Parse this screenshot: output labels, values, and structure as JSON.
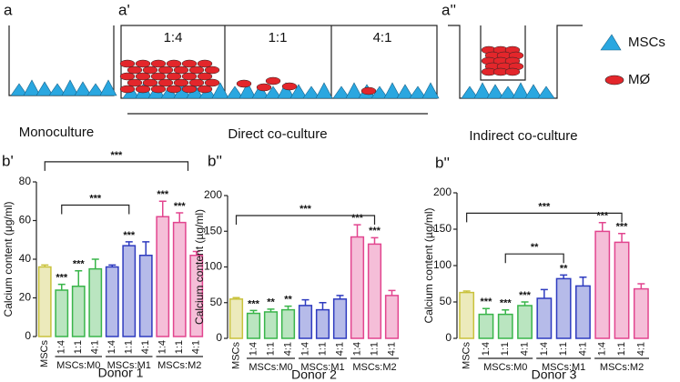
{
  "schematic": {
    "panel_a": "a",
    "panel_a1": "a'",
    "panel_a2": "a''",
    "ratios": [
      "1:4",
      "1:1",
      "4:1"
    ],
    "legend": [
      "MSCs",
      "MØ"
    ],
    "captions": [
      "Monoculture",
      "Direct co-culture",
      "Indirect co-culture"
    ]
  },
  "chart_data": [
    {
      "type": "bar",
      "panel": "b'",
      "title": "Donor 1",
      "ylabel": "Calcium content (μg/ml)",
      "categories": [
        "MSCs",
        "1:4",
        "1:1",
        "4:1",
        "1:4",
        "1:1",
        "4:1",
        "1:4",
        "1:1",
        "4:1"
      ],
      "values": [
        36,
        24,
        26,
        35,
        36,
        47,
        42,
        62,
        59,
        42
      ],
      "errors": [
        1,
        3,
        8,
        5,
        1,
        2,
        7,
        8,
        5,
        2
      ],
      "significance": [
        null,
        "***",
        "***",
        null,
        null,
        "***",
        null,
        "***",
        "***",
        null
      ],
      "groups": [
        "MSCs:M0",
        "MSCs:M1",
        "MSCs:M2"
      ],
      "brackets": [
        "***",
        "***"
      ],
      "colors": [
        "#c9c23c",
        "#39b54a",
        "#39b54a",
        "#39b54a",
        "#2e3bbf",
        "#2e3bbf",
        "#2e3bbf",
        "#e2458f",
        "#e2458f",
        "#e2458f"
      ],
      "ylim": [
        0,
        80
      ],
      "yticks": [
        0,
        20,
        40,
        60,
        80
      ]
    },
    {
      "type": "bar",
      "panel": "b''",
      "title": "Donor 2",
      "ylabel": "Calcium content (µg/ml)",
      "categories": [
        "MSCs",
        "1:4",
        "1:1",
        "4:1",
        "1:4",
        "1:1",
        "4:1",
        "1:4",
        "1:1",
        "4:1"
      ],
      "values": [
        55,
        35,
        37,
        40,
        46,
        40,
        55,
        142,
        132,
        60
      ],
      "errors": [
        2,
        4,
        4,
        5,
        8,
        10,
        5,
        17,
        9,
        7
      ],
      "significance": [
        null,
        "***",
        "**",
        "**",
        null,
        null,
        null,
        "***",
        "***",
        null
      ],
      "groups": [
        "MSCs:M0",
        "MSCs:M1",
        "MSCs:M2"
      ],
      "brackets": [
        "***"
      ],
      "colors": [
        "#c9c23c",
        "#39b54a",
        "#39b54a",
        "#39b54a",
        "#2e3bbf",
        "#2e3bbf",
        "#2e3bbf",
        "#e2458f",
        "#e2458f",
        "#e2458f"
      ],
      "ylim": [
        0,
        200
      ],
      "yticks": [
        0,
        50,
        100,
        150,
        200
      ]
    },
    {
      "type": "bar",
      "panel": "b''",
      "title": "Donor 3",
      "ylabel": "Calcium content (µg/ml)",
      "categories": [
        "MSCs",
        "1:4",
        "1:1",
        "4:1",
        "1:4",
        "1:1",
        "4:1",
        "1:4",
        "1:1",
        "4:1"
      ],
      "values": [
        63,
        33,
        33,
        45,
        55,
        82,
        72,
        147,
        132,
        68
      ],
      "errors": [
        2,
        8,
        6,
        5,
        12,
        5,
        12,
        12,
        12,
        7
      ],
      "significance": [
        null,
        "***",
        "***",
        "***",
        null,
        "**",
        null,
        "***",
        "***",
        null
      ],
      "groups": [
        "MSCs:M0",
        "MSCs:M1",
        "MSCs:M2"
      ],
      "brackets": [
        "***",
        "**"
      ],
      "colors": [
        "#c9c23c",
        "#39b54a",
        "#39b54a",
        "#39b54a",
        "#2e3bbf",
        "#2e3bbf",
        "#2e3bbf",
        "#e2458f",
        "#e2458f",
        "#e2458f"
      ],
      "ylim": [
        0,
        200
      ],
      "yticks": [
        0,
        50,
        100,
        150,
        200
      ]
    }
  ]
}
